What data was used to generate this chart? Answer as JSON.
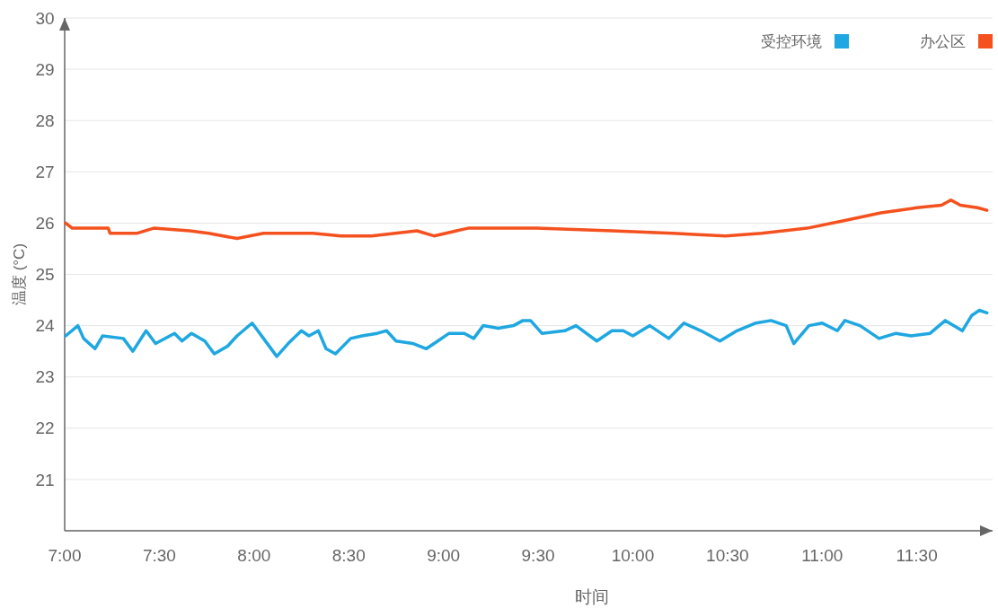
{
  "chart_data": {
    "type": "line",
    "xlabel": "时间",
    "ylabel": "温度 (°C)",
    "xlim": [
      7,
      11.9
    ],
    "ylim": [
      20,
      30
    ],
    "xticks": [
      {
        "value": 7,
        "label": "7:00"
      },
      {
        "value": 7.5,
        "label": "7:30"
      },
      {
        "value": 8,
        "label": "8:00"
      },
      {
        "value": 8.5,
        "label": "8:30"
      },
      {
        "value": 9,
        "label": "9:00"
      },
      {
        "value": 9.5,
        "label": "9:30"
      },
      {
        "value": 10,
        "label": "10:00"
      },
      {
        "value": 10.5,
        "label": "10:30"
      },
      {
        "value": 11,
        "label": "11:00"
      },
      {
        "value": 11.5,
        "label": "11:30"
      }
    ],
    "yticks": [
      {
        "value": 20,
        "label": null
      },
      21,
      22,
      23,
      24,
      25,
      26,
      27,
      28,
      29,
      30
    ],
    "grid": "y",
    "legend": "top right",
    "marker": "none",
    "line_style": "solid",
    "series": [
      {
        "name": "受控环境",
        "color": "#1ea7e1",
        "x": [
          7.005,
          7.07,
          7.1,
          7.16,
          7.2,
          7.31,
          7.36,
          7.43,
          7.48,
          7.58,
          7.62,
          7.67,
          7.74,
          7.79,
          7.86,
          7.91,
          7.99,
          8.05,
          8.12,
          8.18,
          8.25,
          8.29,
          8.34,
          8.38,
          8.43,
          8.51,
          8.57,
          8.65,
          8.7,
          8.75,
          8.84,
          8.91,
          8.97,
          9.03,
          9.11,
          9.16,
          9.21,
          9.29,
          9.37,
          9.42,
          9.46,
          9.52,
          9.64,
          9.7,
          9.81,
          9.89,
          9.95,
          10,
          10.09,
          10.19,
          10.27,
          10.36,
          10.46,
          10.55,
          10.65,
          10.73,
          10.81,
          10.85,
          10.93,
          11,
          11.08,
          11.12,
          11.2,
          11.3,
          11.39,
          11.47,
          11.57,
          11.65,
          11.74,
          11.79,
          11.83,
          11.87
        ],
        "values": [
          23.8,
          24,
          23.75,
          23.55,
          23.8,
          23.75,
          23.5,
          23.9,
          23.65,
          23.85,
          23.7,
          23.85,
          23.7,
          23.45,
          23.6,
          23.8,
          24.05,
          23.75,
          23.4,
          23.65,
          23.9,
          23.8,
          23.9,
          23.55,
          23.45,
          23.75,
          23.8,
          23.85,
          23.9,
          23.7,
          23.65,
          23.55,
          23.7,
          23.85,
          23.85,
          23.75,
          24,
          23.95,
          24,
          24.1,
          24.1,
          23.85,
          23.9,
          24,
          23.7,
          23.9,
          23.9,
          23.8,
          24,
          23.75,
          24.05,
          23.9,
          23.7,
          23.9,
          24.05,
          24.1,
          24,
          23.65,
          24,
          24.05,
          23.9,
          24.1,
          24,
          23.75,
          23.85,
          23.8,
          23.85,
          24.1,
          23.9,
          24.2,
          24.3,
          24.25
        ]
      },
      {
        "name": "办公区",
        "color": "#f4511e",
        "x": [
          7.005,
          7.04,
          7.23,
          7.24,
          7.38,
          7.47,
          7.66,
          7.76,
          7.91,
          8.05,
          8.31,
          8.46,
          8.62,
          8.86,
          8.95,
          9.13,
          9.41,
          9.49,
          9.89,
          10.21,
          10.49,
          10.68,
          10.92,
          11.12,
          11.31,
          11.5,
          11.63,
          11.68,
          11.73,
          11.82,
          11.87
        ],
        "values": [
          26,
          25.9,
          25.9,
          25.8,
          25.8,
          25.9,
          25.85,
          25.8,
          25.7,
          25.8,
          25.8,
          25.75,
          25.75,
          25.85,
          25.75,
          25.9,
          25.9,
          25.9,
          25.85,
          25.8,
          25.75,
          25.8,
          25.9,
          26.05,
          26.2,
          26.3,
          26.35,
          26.45,
          26.35,
          26.3,
          26.25
        ]
      }
    ]
  }
}
